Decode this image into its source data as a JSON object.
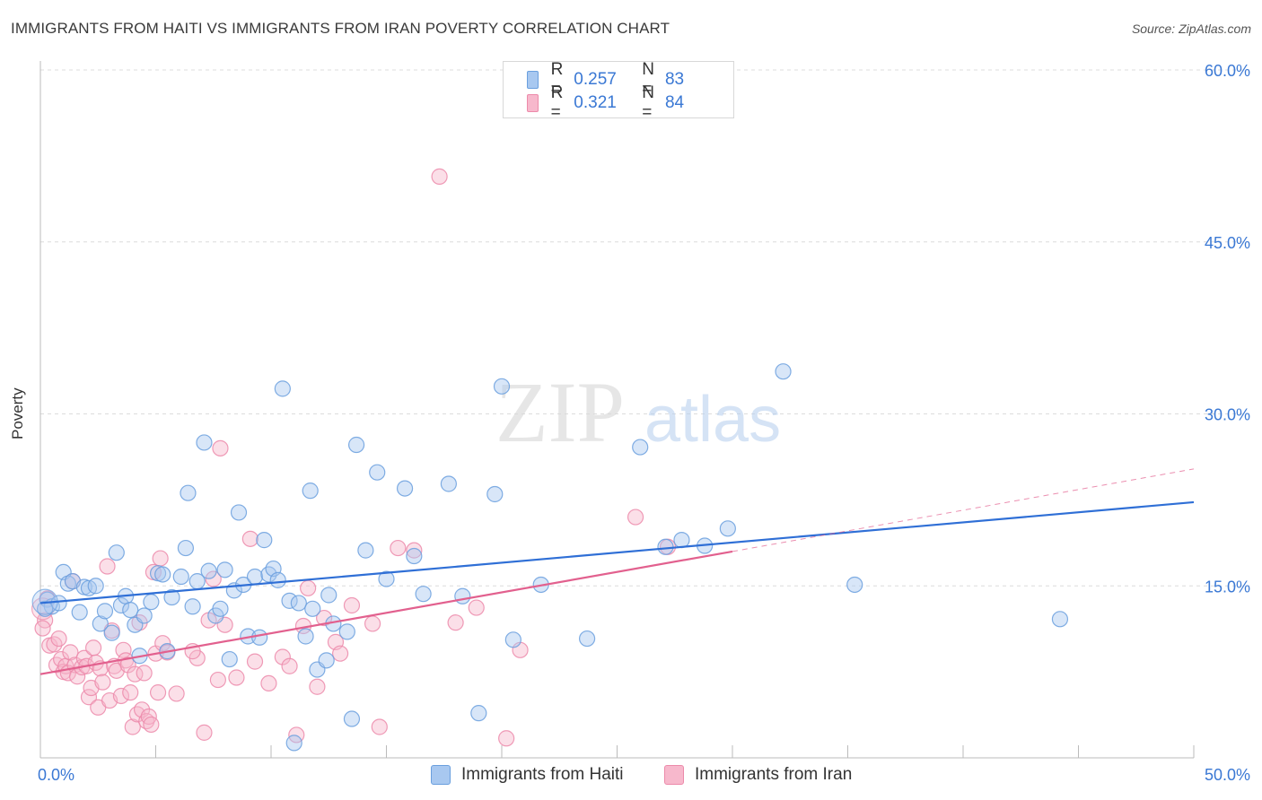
{
  "title": "IMMIGRANTS FROM HAITI VS IMMIGRANTS FROM IRAN POVERTY CORRELATION CHART",
  "source": "Source: ZipAtlas.com",
  "watermark": {
    "zip": "ZIP",
    "atlas": "atlas"
  },
  "legend": {
    "rows": [
      {
        "r_label": "R =",
        "r_value": "0.257",
        "n_label": "N =",
        "n_value": "83"
      },
      {
        "r_label": "R =",
        "r_value": "0.321",
        "n_label": "N =",
        "n_value": "84"
      }
    ]
  },
  "bottom_legend": {
    "haiti": "Immigrants from Haiti",
    "iran": "Immigrants from Iran"
  },
  "colors": {
    "haiti_fill": "#a8c8f0",
    "haiti_stroke": "#6a9fde",
    "haiti_line": "#2f6fd6",
    "iran_fill": "#f7b8cc",
    "iran_stroke": "#ec8aaa",
    "iran_line": "#e2608e",
    "tick_blue": "#3a78d4"
  },
  "chart_data": {
    "type": "scatter",
    "xlabel": "",
    "ylabel": "Poverty",
    "xlim": [
      0,
      50
    ],
    "ylim": [
      0,
      60
    ],
    "x_tick_labels": [
      "0.0%",
      "50.0%"
    ],
    "y_ticks": [
      15,
      30,
      45,
      60
    ],
    "y_tick_labels": [
      "15.0%",
      "30.0%",
      "45.0%",
      "60.0%"
    ],
    "grid": true,
    "legend_position": "top-center",
    "series": [
      {
        "name": "Immigrants from Haiti",
        "trend": {
          "x": [
            0,
            50
          ],
          "y": [
            13.5,
            22.3
          ],
          "style": "solid"
        },
        "points": [
          [
            0.3,
            13.8
          ],
          [
            0.5,
            13.2
          ],
          [
            0.8,
            13.5
          ],
          [
            1.0,
            16.2
          ],
          [
            1.2,
            15.2
          ],
          [
            1.4,
            15.4
          ],
          [
            1.7,
            12.7
          ],
          [
            1.9,
            14.9
          ],
          [
            2.1,
            14.8
          ],
          [
            2.4,
            15.0
          ],
          [
            2.6,
            11.7
          ],
          [
            2.8,
            12.8
          ],
          [
            3.1,
            10.9
          ],
          [
            3.3,
            17.9
          ],
          [
            3.5,
            13.3
          ],
          [
            3.7,
            14.1
          ],
          [
            3.9,
            12.9
          ],
          [
            4.1,
            11.6
          ],
          [
            4.3,
            8.9
          ],
          [
            4.5,
            12.4
          ],
          [
            4.8,
            13.6
          ],
          [
            5.1,
            16.1
          ],
          [
            5.3,
            16.0
          ],
          [
            5.5,
            9.3
          ],
          [
            5.7,
            14.0
          ],
          [
            6.1,
            15.8
          ],
          [
            6.3,
            18.3
          ],
          [
            6.4,
            23.1
          ],
          [
            6.6,
            13.2
          ],
          [
            6.8,
            15.4
          ],
          [
            7.1,
            27.5
          ],
          [
            7.3,
            16.3
          ],
          [
            7.6,
            12.4
          ],
          [
            7.8,
            13.0
          ],
          [
            8.0,
            16.4
          ],
          [
            8.2,
            8.6
          ],
          [
            8.4,
            14.6
          ],
          [
            8.6,
            21.4
          ],
          [
            8.8,
            15.1
          ],
          [
            9.0,
            10.6
          ],
          [
            9.3,
            15.8
          ],
          [
            9.5,
            10.5
          ],
          [
            9.7,
            19.0
          ],
          [
            9.9,
            16.0
          ],
          [
            10.1,
            16.5
          ],
          [
            10.3,
            15.5
          ],
          [
            10.5,
            32.2
          ],
          [
            10.8,
            13.7
          ],
          [
            11.0,
            1.3
          ],
          [
            11.2,
            13.5
          ],
          [
            11.5,
            10.6
          ],
          [
            11.7,
            23.3
          ],
          [
            11.8,
            13.0
          ],
          [
            12.0,
            7.7
          ],
          [
            12.4,
            8.5
          ],
          [
            12.5,
            14.2
          ],
          [
            12.7,
            11.7
          ],
          [
            13.3,
            11.0
          ],
          [
            13.5,
            3.4
          ],
          [
            13.7,
            27.3
          ],
          [
            14.1,
            18.1
          ],
          [
            14.6,
            24.9
          ],
          [
            15.0,
            15.6
          ],
          [
            15.8,
            23.5
          ],
          [
            16.2,
            17.6
          ],
          [
            16.6,
            14.3
          ],
          [
            17.7,
            23.9
          ],
          [
            18.3,
            14.1
          ],
          [
            19.0,
            3.9
          ],
          [
            19.7,
            23.0
          ],
          [
            20.0,
            32.4
          ],
          [
            20.5,
            10.3
          ],
          [
            21.7,
            15.1
          ],
          [
            23.7,
            10.4
          ],
          [
            26.0,
            27.1
          ],
          [
            27.1,
            18.4
          ],
          [
            27.8,
            19.0
          ],
          [
            28.8,
            18.5
          ],
          [
            29.8,
            20.0
          ],
          [
            32.2,
            33.7
          ],
          [
            35.3,
            15.1
          ],
          [
            44.2,
            12.1
          ],
          [
            0.2,
            13.0
          ]
        ]
      },
      {
        "name": "Immigrants from Iran",
        "trend": {
          "x": [
            0,
            30
          ],
          "y": [
            7.3,
            18.0
          ],
          "style": "solid",
          "extension": {
            "x": [
              30,
              50
            ],
            "y": [
              18.0,
              25.2
            ],
            "style": "dashed"
          }
        },
        "points": [
          [
            0.2,
            12.0
          ],
          [
            0.3,
            13.9
          ],
          [
            0.4,
            9.8
          ],
          [
            0.6,
            9.9
          ],
          [
            0.7,
            8.1
          ],
          [
            0.8,
            10.4
          ],
          [
            0.9,
            8.6
          ],
          [
            1.0,
            7.5
          ],
          [
            1.1,
            8.0
          ],
          [
            1.2,
            7.4
          ],
          [
            1.3,
            9.2
          ],
          [
            1.4,
            15.4
          ],
          [
            1.5,
            8.1
          ],
          [
            1.6,
            7.1
          ],
          [
            1.8,
            7.9
          ],
          [
            1.9,
            8.7
          ],
          [
            2.0,
            8.0
          ],
          [
            2.1,
            5.3
          ],
          [
            2.2,
            6.1
          ],
          [
            2.3,
            9.6
          ],
          [
            2.4,
            8.3
          ],
          [
            2.5,
            4.4
          ],
          [
            2.6,
            7.8
          ],
          [
            2.7,
            6.6
          ],
          [
            2.9,
            16.7
          ],
          [
            3.0,
            5.0
          ],
          [
            3.1,
            11.1
          ],
          [
            3.2,
            8.0
          ],
          [
            3.3,
            7.6
          ],
          [
            3.5,
            5.4
          ],
          [
            3.6,
            9.4
          ],
          [
            3.7,
            8.5
          ],
          [
            3.8,
            8.1
          ],
          [
            3.9,
            5.7
          ],
          [
            4.0,
            2.7
          ],
          [
            4.1,
            7.3
          ],
          [
            4.2,
            3.8
          ],
          [
            4.3,
            11.8
          ],
          [
            4.4,
            4.2
          ],
          [
            4.5,
            7.4
          ],
          [
            4.6,
            3.2
          ],
          [
            4.7,
            3.6
          ],
          [
            4.8,
            2.9
          ],
          [
            4.9,
            16.2
          ],
          [
            5.0,
            9.1
          ],
          [
            5.1,
            5.7
          ],
          [
            5.2,
            17.4
          ],
          [
            5.3,
            10.0
          ],
          [
            5.5,
            9.2
          ],
          [
            5.9,
            5.6
          ],
          [
            6.8,
            8.7
          ],
          [
            6.6,
            9.3
          ],
          [
            7.1,
            2.2
          ],
          [
            7.3,
            12.0
          ],
          [
            7.5,
            15.6
          ],
          [
            7.7,
            6.8
          ],
          [
            7.8,
            27.0
          ],
          [
            8.0,
            11.6
          ],
          [
            8.5,
            7.0
          ],
          [
            9.1,
            19.1
          ],
          [
            9.3,
            8.4
          ],
          [
            9.9,
            6.5
          ],
          [
            10.5,
            8.8
          ],
          [
            10.8,
            8.0
          ],
          [
            11.1,
            2.0
          ],
          [
            11.4,
            11.5
          ],
          [
            11.6,
            14.8
          ],
          [
            12.0,
            6.2
          ],
          [
            12.3,
            12.2
          ],
          [
            12.8,
            10.1
          ],
          [
            13.0,
            9.1
          ],
          [
            13.5,
            13.3
          ],
          [
            14.4,
            11.7
          ],
          [
            14.7,
            2.7
          ],
          [
            15.5,
            18.3
          ],
          [
            16.2,
            18.1
          ],
          [
            17.3,
            50.7
          ],
          [
            18.0,
            11.8
          ],
          [
            18.9,
            13.1
          ],
          [
            20.2,
            1.7
          ],
          [
            20.8,
            9.4
          ],
          [
            25.8,
            21.0
          ],
          [
            27.2,
            18.4
          ],
          [
            0.1,
            11.3
          ]
        ]
      }
    ]
  }
}
